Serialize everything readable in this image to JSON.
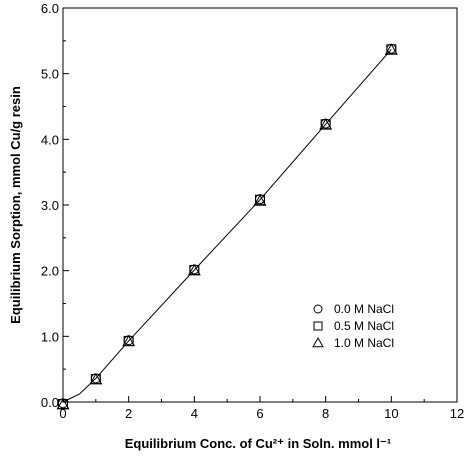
{
  "chart_data": {
    "type": "scatter",
    "xlabel": "Equilibrium Conc. of Cu²⁺ in Soln. mmol l⁻¹",
    "ylabel": "Equilibrium Sorption, mmol Cu/g resin",
    "xlim": [
      0,
      12
    ],
    "ylim": [
      0,
      6.0
    ],
    "x_ticks": [
      "0",
      "2",
      "4",
      "6",
      "8",
      "10",
      "12"
    ],
    "y_ticks": [
      "0.0",
      "1.0",
      "2.0",
      "3.0",
      "4.0",
      "5.0",
      "6.0"
    ],
    "grid": false,
    "legend_position": "bottom-right",
    "series": [
      {
        "name": "0.0 M NaCl",
        "marker": "circle",
        "x": [
          0,
          1,
          2,
          4,
          6,
          8,
          10
        ],
        "y": [
          -0.02,
          0.36,
          0.94,
          2.02,
          3.09,
          4.24,
          5.38
        ]
      },
      {
        "name": "0.5 M NaCl",
        "marker": "square",
        "x": [
          0,
          1,
          2,
          4,
          6,
          8,
          10
        ],
        "y": [
          -0.03,
          0.35,
          0.93,
          2.01,
          3.08,
          4.23,
          5.37
        ]
      },
      {
        "name": "1.0 M NaCl",
        "marker": "triangle",
        "x": [
          0,
          1,
          2,
          4,
          6,
          8,
          10
        ],
        "y": [
          -0.04,
          0.34,
          0.92,
          2.0,
          3.06,
          4.22,
          5.36
        ]
      }
    ],
    "fit_line": {
      "x": [
        0,
        0.5,
        1,
        2,
        4,
        6,
        8,
        10
      ],
      "y": [
        0.0,
        0.12,
        0.36,
        0.93,
        2.01,
        3.08,
        4.23,
        5.37
      ]
    }
  }
}
